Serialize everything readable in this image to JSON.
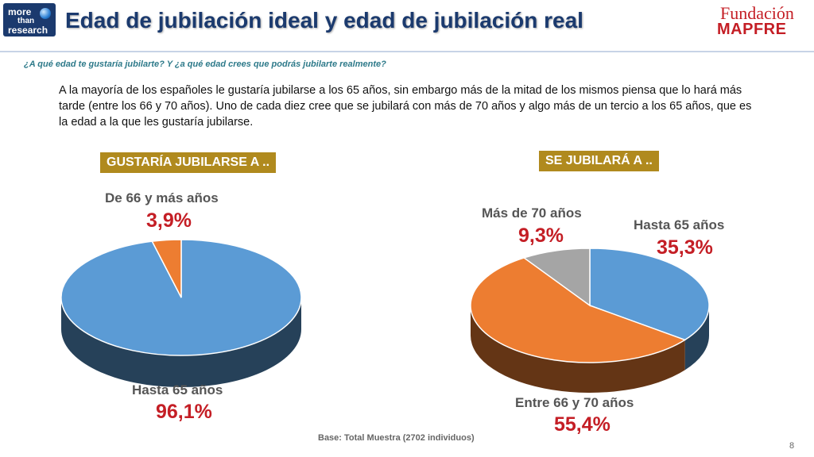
{
  "header": {
    "logo_line1": "more",
    "logo_line2": "than",
    "logo_line3": "research",
    "title": "Edad de jubilación ideal y edad de jubilación real",
    "brand_line1": "Fundación",
    "brand_line2": "MAPFRE"
  },
  "question": "¿A qué edad te gustaría jubilarte? Y ¿a qué edad crees que podrás jubilarte realmente?",
  "paragraph": "A la mayoría de los españoles le gustaría jubilarse a los 65 años, sin embargo más de la mitad de los mismos piensa que lo hará más tarde (entre los 66 y 70 años). Uno de cada diez cree que se jubilará con más de 70 años y algo más de un tercio a los 65 años, que es la edad a la que les gustaría jubilarse.",
  "chart_data": [
    {
      "type": "pie",
      "title": "GUSTARÍA JUBILARSE A ..",
      "slices": [
        {
          "label": "Hasta 65 años",
          "value": 96.1,
          "value_label": "96,1%",
          "color": "#5b9bd5"
        },
        {
          "label": "De 66 y más años",
          "value": 3.9,
          "value_label": "3,9%",
          "color": "#ed7d31"
        }
      ]
    },
    {
      "type": "pie",
      "title": "SE JUBILARÁ A ..",
      "slices": [
        {
          "label": "Hasta 65 años",
          "value": 35.3,
          "value_label": "35,3%",
          "color": "#5b9bd5"
        },
        {
          "label": "Entre 66 y 70 años",
          "value": 55.4,
          "value_label": "55,4%",
          "color": "#ed7d31"
        },
        {
          "label": "Más de 70 años",
          "value": 9.3,
          "value_label": "9,3%",
          "color": "#a5a5a5"
        }
      ]
    }
  ],
  "footer": {
    "base": "Base: Total Muestra (2702 individuos)",
    "page": "8"
  }
}
